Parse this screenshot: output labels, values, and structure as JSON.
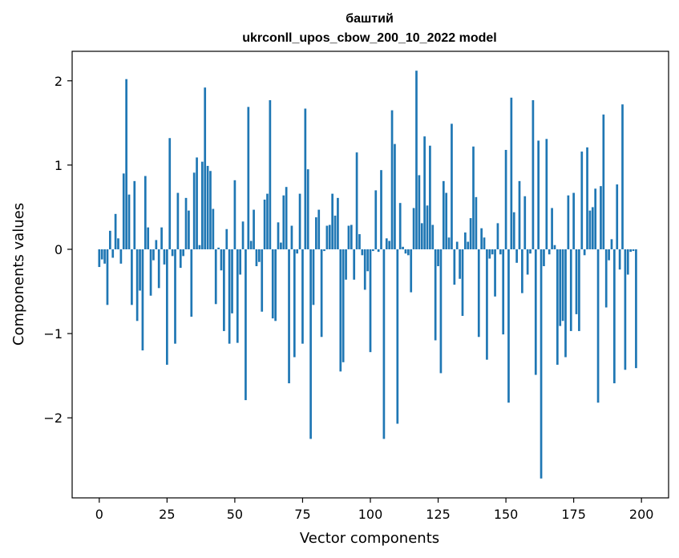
{
  "chart_data": {
    "type": "bar",
    "title_line1": "баштий",
    "title_line2": "ukrconll_upos_cbow_200_10_2022 model",
    "xlabel": "Vector components",
    "ylabel": "Components values",
    "xlim": [
      -10,
      210
    ],
    "ylim": [
      -2.95,
      2.35
    ],
    "x_ticks": [
      0,
      25,
      50,
      75,
      100,
      125,
      150,
      175,
      200
    ],
    "y_ticks": [
      -2,
      -1,
      0,
      1,
      2
    ],
    "y_tick_labels": [
      "−2",
      "−1",
      "0",
      "1",
      "2"
    ],
    "bar_color": "#1f77b4",
    "grid": false,
    "values": [
      -0.21,
      -0.12,
      -0.17,
      -0.66,
      0.22,
      -0.1,
      0.42,
      0.13,
      -0.17,
      0.9,
      2.02,
      0.65,
      -0.66,
      0.81,
      -0.85,
      -0.49,
      -1.2,
      0.87,
      0.26,
      -0.55,
      -0.13,
      0.11,
      -0.46,
      0.26,
      -0.18,
      -1.37,
      1.32,
      -0.08,
      -1.12,
      0.67,
      -0.22,
      -0.08,
      0.61,
      0.46,
      -0.8,
      0.91,
      1.09,
      0.05,
      1.04,
      1.92,
      0.99,
      0.93,
      0.48,
      -0.65,
      0.02,
      -0.25,
      -0.97,
      0.24,
      -1.12,
      -0.76,
      0.82,
      -1.11,
      -0.3,
      0.33,
      -1.79,
      1.69,
      0.1,
      0.47,
      -0.2,
      -0.15,
      -0.74,
      0.59,
      0.66,
      1.77,
      -0.82,
      -0.85,
      0.32,
      0.08,
      0.64,
      0.74,
      -1.59,
      0.28,
      -1.28,
      -0.05,
      0.66,
      -1.12,
      1.67,
      0.95,
      -2.25,
      -0.66,
      0.38,
      0.47,
      -1.04,
      -0.02,
      0.28,
      0.29,
      0.66,
      0.4,
      0.61,
      -1.45,
      -1.34,
      -0.36,
      0.28,
      0.29,
      -0.36,
      1.15,
      0.18,
      -0.07,
      -0.48,
      -0.26,
      -1.22,
      -0.02,
      0.7,
      -0.03,
      0.94,
      -2.25,
      0.13,
      0.1,
      1.65,
      1.25,
      -2.07,
      0.55,
      0.03,
      -0.05,
      -0.07,
      -0.51,
      0.49,
      2.12,
      0.88,
      0.31,
      1.34,
      0.52,
      1.23,
      0.29,
      -1.08,
      -0.2,
      -1.47,
      0.81,
      0.67,
      0.14,
      1.49,
      -0.42,
      0.09,
      -0.35,
      -0.79,
      0.2,
      0.09,
      0.37,
      1.22,
      0.62,
      -1.04,
      0.25,
      0.14,
      -1.31,
      -0.11,
      -0.06,
      -0.56,
      0.31,
      -0.06,
      -1.01,
      1.18,
      -1.82,
      1.8,
      0.44,
      -0.16,
      0.81,
      -0.52,
      0.63,
      -0.3,
      -0.05,
      1.77,
      -1.49,
      1.29,
      -2.72,
      -0.2,
      1.31,
      -0.06,
      0.49,
      0.05,
      -1.37,
      -0.91,
      -0.85,
      -1.28,
      0.64,
      -0.97,
      0.67,
      -0.77,
      -0.97,
      1.16,
      -0.07,
      1.21,
      0.46,
      0.5,
      0.72,
      -1.82,
      0.75,
      1.6,
      -0.69,
      -0.13,
      0.12,
      -1.59,
      0.77,
      -0.24,
      1.72,
      -1.43,
      -0.3,
      -0.03,
      -0.02,
      -1.41
    ]
  }
}
